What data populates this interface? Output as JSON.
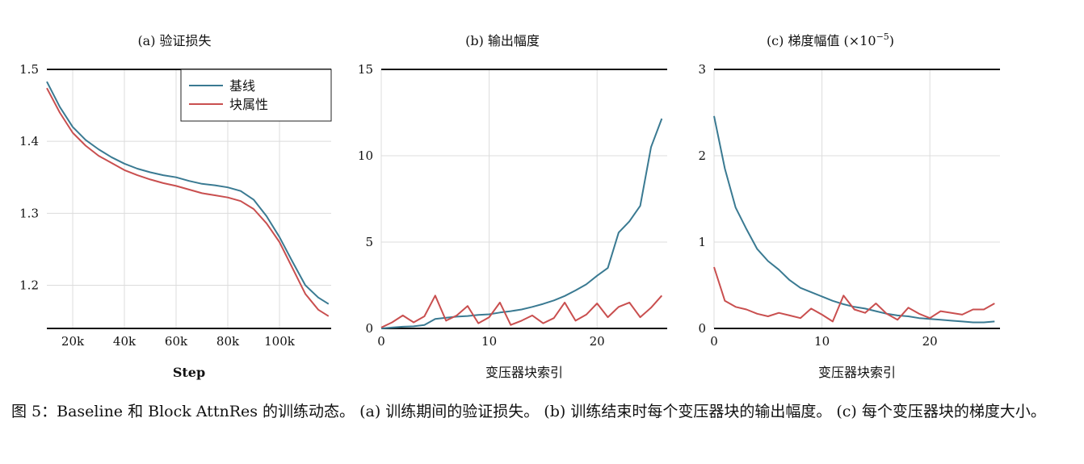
{
  "chart_data": [
    {
      "type": "line",
      "title": "(a) 验证损失",
      "xlabel": "Step",
      "ylabel": "",
      "xlim": [
        10000,
        120000
      ],
      "ylim": [
        1.14,
        1.5
      ],
      "xticks": [
        20000,
        40000,
        60000,
        80000,
        100000
      ],
      "xtick_labels": [
        "20k",
        "40k",
        "60k",
        "80k",
        "100k"
      ],
      "yticks": [
        1.2,
        1.3,
        1.4,
        1.5
      ],
      "ytick_labels": [
        "1.2",
        "1.3",
        "1.4",
        "1.5"
      ],
      "grid": true,
      "legend": "top-right",
      "series": [
        {
          "name": "基线",
          "color": "#3a7a92",
          "x": [
            10000,
            15000,
            20000,
            25000,
            30000,
            35000,
            40000,
            45000,
            50000,
            55000,
            60000,
            65000,
            70000,
            75000,
            80000,
            85000,
            90000,
            95000,
            100000,
            105000,
            110000,
            115000,
            119000
          ],
          "y": [
            1.483,
            1.448,
            1.42,
            1.402,
            1.389,
            1.378,
            1.369,
            1.362,
            1.357,
            1.353,
            1.35,
            1.345,
            1.341,
            1.339,
            1.336,
            1.331,
            1.319,
            1.296,
            1.267,
            1.233,
            1.2,
            1.183,
            1.174
          ]
        },
        {
          "name": "块属性",
          "color": "#c94f4f",
          "x": [
            10000,
            15000,
            20000,
            25000,
            30000,
            35000,
            40000,
            45000,
            50000,
            55000,
            60000,
            65000,
            70000,
            75000,
            80000,
            85000,
            90000,
            95000,
            100000,
            105000,
            110000,
            115000,
            119000
          ],
          "y": [
            1.474,
            1.44,
            1.412,
            1.394,
            1.38,
            1.37,
            1.36,
            1.353,
            1.347,
            1.342,
            1.338,
            1.333,
            1.328,
            1.325,
            1.322,
            1.317,
            1.306,
            1.286,
            1.26,
            1.224,
            1.188,
            1.166,
            1.157
          ]
        }
      ]
    },
    {
      "type": "line",
      "title": "(b) 输出幅度",
      "xlabel": "变压器块索引",
      "ylabel": "",
      "xlim": [
        0,
        26.5
      ],
      "ylim": [
        0,
        15
      ],
      "xticks": [
        0,
        10,
        20
      ],
      "xtick_labels": [
        "0",
        "10",
        "20"
      ],
      "yticks": [
        0,
        5,
        10,
        15
      ],
      "ytick_labels": [
        "0",
        "5",
        "10",
        "15"
      ],
      "grid": true,
      "series": [
        {
          "color": "#3a7a92",
          "x": [
            0,
            1,
            2,
            3,
            4,
            5,
            6,
            7,
            8,
            9,
            10,
            11,
            12,
            13,
            14,
            15,
            16,
            17,
            18,
            19,
            20,
            21,
            22,
            23,
            24,
            25,
            26
          ],
          "y": [
            0.0,
            0.05,
            0.1,
            0.12,
            0.2,
            0.55,
            0.62,
            0.68,
            0.72,
            0.78,
            0.82,
            0.92,
            1.0,
            1.1,
            1.25,
            1.42,
            1.62,
            1.88,
            2.2,
            2.55,
            3.05,
            3.5,
            5.55,
            6.2,
            7.1,
            10.5,
            12.15
          ]
        },
        {
          "color": "#c94f4f",
          "x": [
            0,
            1,
            2,
            3,
            4,
            5,
            6,
            7,
            8,
            9,
            10,
            11,
            12,
            13,
            14,
            15,
            16,
            17,
            18,
            19,
            20,
            21,
            22,
            23,
            24,
            25,
            26
          ],
          "y": [
            0.05,
            0.35,
            0.75,
            0.35,
            0.7,
            1.9,
            0.45,
            0.75,
            1.3,
            0.3,
            0.65,
            1.5,
            0.2,
            0.45,
            0.75,
            0.3,
            0.6,
            1.5,
            0.45,
            0.8,
            1.45,
            0.65,
            1.25,
            1.5,
            0.65,
            1.2,
            1.9
          ]
        }
      ]
    },
    {
      "type": "line",
      "title": "(c) 梯度幅值 (×10",
      "title_exponent": "−5",
      "title_close": ")",
      "xlabel": "变压器块索引",
      "ylabel": "",
      "xlim": [
        0,
        26.5
      ],
      "ylim": [
        0,
        3
      ],
      "xticks": [
        0,
        10,
        20
      ],
      "xtick_labels": [
        "0",
        "10",
        "20"
      ],
      "yticks": [
        0,
        1,
        2,
        3
      ],
      "ytick_labels": [
        "0",
        "1",
        "2",
        "3"
      ],
      "grid": true,
      "series": [
        {
          "color": "#3a7a92",
          "x": [
            0,
            1,
            2,
            3,
            4,
            5,
            6,
            7,
            8,
            9,
            10,
            11,
            12,
            13,
            14,
            15,
            16,
            17,
            18,
            19,
            20,
            21,
            22,
            23,
            24,
            25,
            26
          ],
          "y": [
            2.46,
            1.85,
            1.4,
            1.15,
            0.92,
            0.78,
            0.68,
            0.56,
            0.47,
            0.42,
            0.37,
            0.32,
            0.28,
            0.25,
            0.23,
            0.2,
            0.17,
            0.15,
            0.14,
            0.12,
            0.11,
            0.1,
            0.09,
            0.08,
            0.07,
            0.07,
            0.08
          ]
        },
        {
          "color": "#c94f4f",
          "x": [
            0,
            1,
            2,
            3,
            4,
            5,
            6,
            7,
            8,
            9,
            10,
            11,
            12,
            13,
            14,
            15,
            16,
            17,
            18,
            19,
            20,
            21,
            22,
            23,
            24,
            25,
            26
          ],
          "y": [
            0.71,
            0.32,
            0.25,
            0.22,
            0.17,
            0.14,
            0.18,
            0.15,
            0.12,
            0.23,
            0.16,
            0.08,
            0.38,
            0.22,
            0.18,
            0.29,
            0.17,
            0.1,
            0.24,
            0.17,
            0.12,
            0.2,
            0.18,
            0.16,
            0.22,
            0.22,
            0.29
          ]
        }
      ]
    }
  ],
  "caption": "图 5：Baseline 和 Block AttnRes 的训练动态。 (a) 训练期间的验证损失。 (b) 训练结束时每个变压器块的输出幅度。 (c) 每个变压器块的梯度大小。"
}
